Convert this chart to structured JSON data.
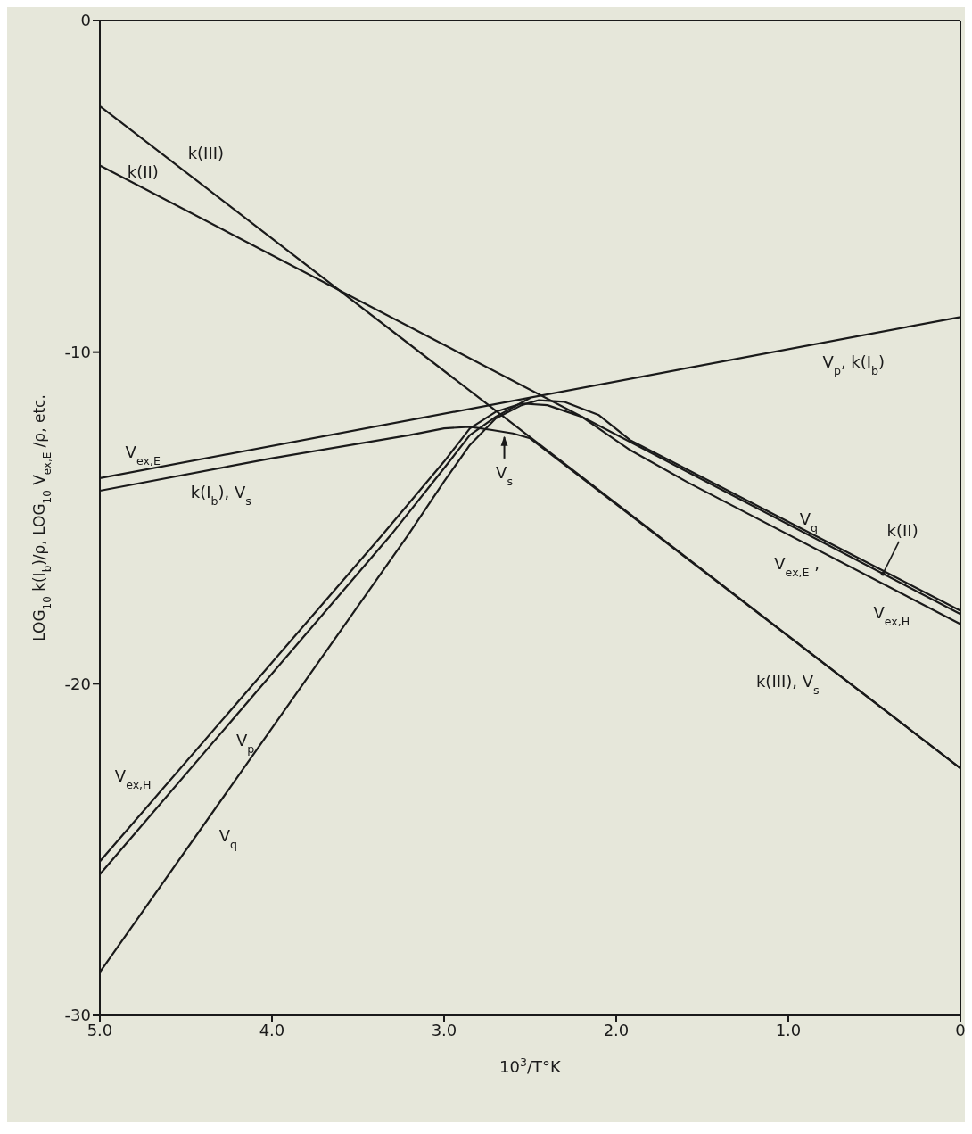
{
  "chart_data": {
    "type": "line",
    "xlabel": "10$^{3}$/T°K",
    "ylabel": "LOG$_{10}$ k(I$_{b}$)/ρ,  LOG$_{10}$ V$_{ex,E}$ /ρ, etc.",
    "xlim": [
      5,
      0
    ],
    "ylim": [
      -30,
      0
    ],
    "xticks": [
      {
        "value": 5,
        "label": "5.0"
      },
      {
        "value": 4,
        "label": "4.0"
      },
      {
        "value": 3,
        "label": "3.0"
      },
      {
        "value": 2,
        "label": "2.0"
      },
      {
        "value": 1,
        "label": "1.0"
      },
      0
    ],
    "yticks": [
      -30,
      -20,
      -10,
      0
    ],
    "grid": false,
    "series": [
      {
        "color": "#1a1a1a",
        "x": [
          5,
          0
        ],
        "values": [
          -13.8,
          -8.94
        ]
      },
      {
        "color": "#1a1a1a",
        "x": [
          5,
          0
        ],
        "values": [
          -2.58,
          -22.55
        ]
      },
      {
        "color": "#1a1a1a",
        "x": [
          5,
          0
        ],
        "values": [
          -4.37,
          -17.9
        ]
      },
      {
        "color": "#1a1a1a",
        "x": [
          5,
          4,
          3.2,
          3,
          2.85,
          2.72,
          2.6,
          2.5,
          0
        ],
        "values": [
          -14.18,
          -13.2,
          -12.5,
          -12.3,
          -12.25,
          -12.35,
          -12.45,
          -12.6,
          -22.55
        ]
      },
      {
        "color": "#1a1a1a",
        "x": [
          5,
          3.36,
          3,
          2.85,
          2.7,
          2.55,
          2.4,
          2.2,
          1.92,
          1.58,
          0
        ],
        "values": [
          -25.36,
          -15.52,
          -13.3,
          -12.3,
          -11.8,
          -11.55,
          -11.6,
          -11.95,
          -12.95,
          -13.94,
          -18.2
        ]
      },
      {
        "color": "#1a1a1a",
        "x": [
          5,
          3.31,
          3,
          2.85,
          2.7,
          2.5
        ],
        "values": [
          -25.75,
          -15.52,
          -13.5,
          -12.5,
          -11.95,
          -11.38
        ]
      },
      {
        "color": "#1a1a1a",
        "x": [
          5,
          3.21,
          3,
          2.85,
          2.7,
          2.55,
          2.45,
          2.3,
          2.1,
          1.92,
          1.58,
          0
        ],
        "values": [
          -28.7,
          -15.52,
          -13.9,
          -12.8,
          -12,
          -11.6,
          -11.45,
          -11.5,
          -11.9,
          -12.65,
          -13.56,
          -17.8
        ]
      }
    ],
    "annotations": [
      {
        "text": "k(III)",
        "x": 4.55,
        "y": -4.38
      },
      {
        "text": "k(II)",
        "x": 4.75,
        "y": -5.05
      },
      {
        "text": "V$_{ex,E}$",
        "x": 4.75,
        "y": -13.56
      },
      {
        "text": "k(I$_{b}$),  V$_{s}$",
        "x": 4.4,
        "y": -13.59
      },
      {
        "text": "V$_{s}$",
        "x": 2.65,
        "y": -12.4
      },
      {
        "text": "V$_{p}$,  k(I$_{b}$)",
        "x": 0.62,
        "y": -9.54
      },
      {
        "text": "V$_{q}$",
        "x": 0.85,
        "y": -15.52
      },
      {
        "text": "k(II)",
        "x": 0.45,
        "y": -16.68
      },
      {
        "text": "V$_{ex,E}$ ,",
        "x": 0.95,
        "y": -15.64
      },
      {
        "text": "V$_{ex,H}$",
        "x": 0.4,
        "y": -17.12
      },
      {
        "text": "k(III),  V$_{s}$",
        "x": 0.9,
        "y": -18.96
      },
      {
        "text": "V$_{ex,H}$",
        "x": 4.6,
        "y": -22.96
      },
      {
        "text": "V$_{p}$",
        "x": 4.3,
        "y": -21.5
      },
      {
        "text": "V$_{q}$",
        "x": 4.4,
        "y": -24.28
      }
    ]
  }
}
